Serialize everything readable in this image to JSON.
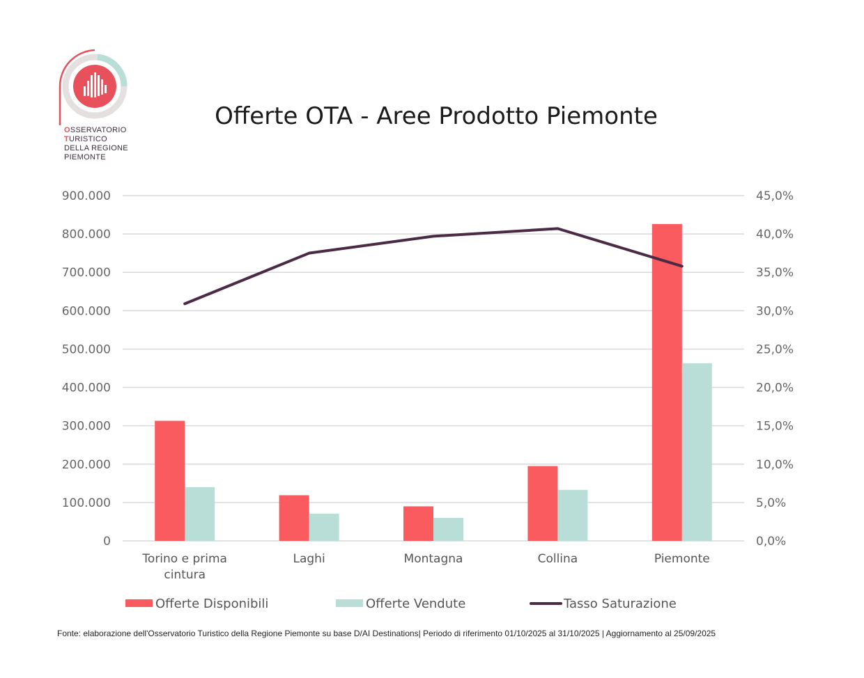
{
  "logo": {
    "lines": [
      {
        "first": "O",
        "rest": "SSERVATORIO"
      },
      {
        "first": "T",
        "rest": "URISTICO"
      },
      {
        "first": "",
        "rest": "DELLA REGIONE"
      },
      {
        "first": "",
        "rest": "PIEMONTE"
      }
    ]
  },
  "source_note": "Fonte: elaborazione dell'Osservatorio Turistico della Regione Piemonte su base D/AI Destinations| Periodo di riferimento 01/10/2025 al 31/10/2025 | Aggiornamento al 25/09/2025",
  "chart_data": {
    "type": "bar",
    "title": "Offerte OTA - Aree Prodotto Piemonte",
    "categories": [
      [
        "Torino e prima",
        "cintura"
      ],
      [
        "Laghi"
      ],
      [
        "Montagna"
      ],
      [
        "Collina"
      ],
      [
        "Piemonte"
      ]
    ],
    "series": [
      {
        "name": "Offerte Disponibili",
        "type": "bar",
        "axis": "left",
        "color": "#f95b5e",
        "values": [
          313000,
          119000,
          90000,
          195000,
          826000
        ]
      },
      {
        "name": "Offerte Vendute",
        "type": "bar",
        "axis": "left",
        "color": "#b9ded8",
        "values": [
          140000,
          71000,
          60000,
          133000,
          463000
        ]
      },
      {
        "name": "Tasso Saturazione",
        "type": "line",
        "axis": "right",
        "color": "#4a2a44",
        "values": [
          30.9,
          37.5,
          39.7,
          40.7,
          35.8
        ]
      }
    ],
    "y_left": {
      "min": 0,
      "max": 900000,
      "ticks": [
        "0",
        "100.000",
        "200.000",
        "300.000",
        "400.000",
        "500.000",
        "600.000",
        "700.000",
        "800.000",
        "900.000"
      ]
    },
    "y_right": {
      "min": 0,
      "max": 45,
      "ticks": [
        "0,0%",
        "5,0%",
        "10,0%",
        "15,0%",
        "20,0%",
        "25,0%",
        "30,0%",
        "35,0%",
        "40,0%",
        "45,0%"
      ]
    },
    "legend_position": "bottom",
    "grid": true
  }
}
